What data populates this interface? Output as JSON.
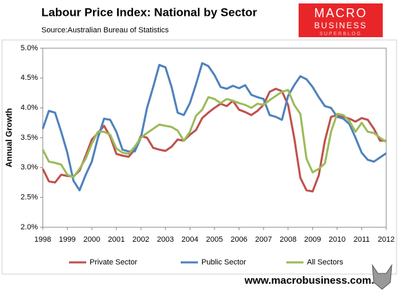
{
  "chart_data": {
    "type": "line",
    "title": "Labour Price Index: National by Sector",
    "subtitle": "Source:Australian Bureau of Statistics",
    "y_label": "Annual Growth",
    "logo": {
      "line1": "MACRO",
      "line2": "BUSINESS",
      "line3": "SUPERBLOG"
    },
    "footer": "www.macrobusiness.com.au",
    "x": [
      1998,
      1998.25,
      1998.5,
      1998.75,
      1999,
      1999.25,
      1999.5,
      1999.75,
      2000,
      2000.25,
      2000.5,
      2000.75,
      2001,
      2001.25,
      2001.5,
      2001.75,
      2002,
      2002.25,
      2002.5,
      2002.75,
      2003,
      2003.25,
      2003.5,
      2003.75,
      2004,
      2004.25,
      2004.5,
      2004.75,
      2005,
      2005.25,
      2005.5,
      2005.75,
      2006,
      2006.25,
      2006.5,
      2006.75,
      2007,
      2007.25,
      2007.5,
      2007.75,
      2008,
      2008.25,
      2008.5,
      2008.75,
      2009,
      2009.25,
      2009.5,
      2009.75,
      2010,
      2010.25,
      2010.5,
      2010.75,
      2011,
      2011.25,
      2011.5,
      2011.75,
      2012
    ],
    "series": [
      {
        "name": "Private Sector",
        "color": "#c0504d",
        "values": [
          2.98,
          2.77,
          2.75,
          2.88,
          2.86,
          2.85,
          2.95,
          3.2,
          3.47,
          3.58,
          3.7,
          3.52,
          3.23,
          3.2,
          3.18,
          3.3,
          3.53,
          3.5,
          3.33,
          3.3,
          3.28,
          3.35,
          3.47,
          3.45,
          3.55,
          3.63,
          3.83,
          3.92,
          4.0,
          4.07,
          4.03,
          4.12,
          3.97,
          3.93,
          3.88,
          3.95,
          4.05,
          4.27,
          4.32,
          4.28,
          4.05,
          3.5,
          2.83,
          2.62,
          2.6,
          2.87,
          3.45,
          3.85,
          3.88,
          3.85,
          3.82,
          3.77,
          3.83,
          3.8,
          3.65,
          3.45,
          3.45
        ]
      },
      {
        "name": "Public Sector",
        "color": "#4f81bd",
        "values": [
          3.65,
          3.95,
          3.92,
          3.6,
          3.25,
          2.78,
          2.62,
          2.88,
          3.1,
          3.5,
          3.82,
          3.8,
          3.6,
          3.3,
          3.27,
          3.27,
          3.5,
          4.0,
          4.35,
          4.72,
          4.68,
          4.35,
          3.92,
          3.88,
          4.08,
          4.4,
          4.75,
          4.7,
          4.55,
          4.35,
          4.32,
          4.37,
          4.33,
          4.38,
          4.22,
          4.18,
          4.15,
          3.88,
          3.85,
          3.8,
          4.2,
          4.38,
          4.53,
          4.48,
          4.35,
          4.18,
          4.03,
          4.0,
          3.85,
          3.82,
          3.73,
          3.5,
          3.25,
          3.13,
          3.1,
          3.17,
          3.24
        ]
      },
      {
        "name": "All Sectors",
        "color": "#9bbb59",
        "values": [
          3.3,
          3.1,
          3.08,
          3.05,
          2.88,
          2.84,
          2.98,
          3.15,
          3.4,
          3.6,
          3.6,
          3.55,
          3.32,
          3.25,
          3.23,
          3.35,
          3.5,
          3.58,
          3.65,
          3.72,
          3.7,
          3.68,
          3.62,
          3.45,
          3.6,
          3.87,
          3.97,
          4.18,
          4.15,
          4.08,
          4.15,
          4.12,
          4.08,
          4.05,
          4.0,
          4.07,
          4.05,
          4.13,
          4.2,
          4.27,
          4.3,
          4.05,
          3.9,
          3.15,
          2.92,
          2.98,
          3.07,
          3.6,
          3.9,
          3.88,
          3.78,
          3.6,
          3.75,
          3.6,
          3.58,
          3.5,
          3.43
        ]
      }
    ],
    "xlim": [
      1998,
      2012
    ],
    "xticks": [
      1998,
      1999,
      2000,
      2001,
      2002,
      2003,
      2004,
      2005,
      2006,
      2007,
      2008,
      2009,
      2010,
      2011,
      2012
    ],
    "ylim": [
      2,
      5
    ],
    "yticks": [
      {
        "value": 2,
        "label": "2.0%"
      },
      {
        "value": 2.5,
        "label": "2.5%"
      },
      {
        "value": 3,
        "label": "3.0%"
      },
      {
        "value": 3.5,
        "label": "3.5%"
      },
      {
        "value": 4,
        "label": "4.0%"
      },
      {
        "value": 4.5,
        "label": "4.5%"
      },
      {
        "value": 5,
        "label": "5.0%"
      }
    ],
    "grid": false,
    "legend": "bottom"
  }
}
